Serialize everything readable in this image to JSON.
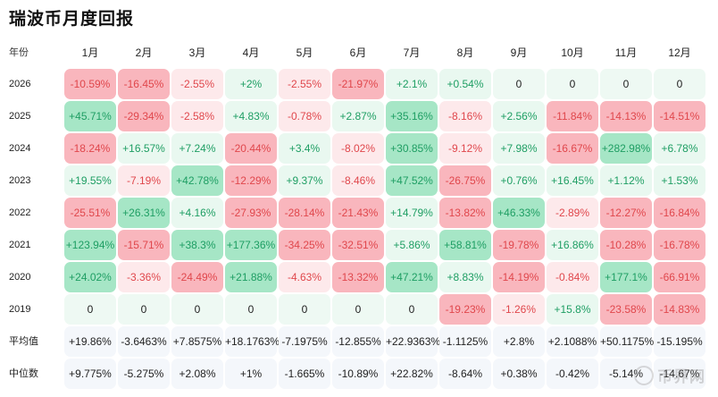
{
  "title": "瑞波币月度回报",
  "chart_data": {
    "type": "heatmap",
    "title": "瑞波币月度回报",
    "row_header": "年份",
    "months": [
      "1月",
      "2月",
      "3月",
      "4月",
      "5月",
      "6月",
      "7月",
      "8月",
      "9月",
      "10月",
      "11月",
      "12月"
    ],
    "rows": [
      {
        "label": "2026",
        "cells": [
          "-10.59%",
          "-16.45%",
          "-2.55%",
          "+2%",
          "-2.55%",
          "-21.97%",
          "+2.1%",
          "+0.54%",
          "0",
          "0",
          "0",
          "0"
        ],
        "values": [
          -10.59,
          -16.45,
          -2.55,
          2,
          -2.55,
          -21.97,
          2.1,
          0.54,
          0,
          0,
          0,
          0
        ]
      },
      {
        "label": "2025",
        "cells": [
          "+45.71%",
          "-29.34%",
          "-2.58%",
          "+4.83%",
          "-0.78%",
          "+2.87%",
          "+35.16%",
          "-8.16%",
          "+2.56%",
          "-11.84%",
          "-14.13%",
          "-14.51%"
        ],
        "values": [
          45.71,
          -29.34,
          -2.58,
          4.83,
          -0.78,
          2.87,
          35.16,
          -8.16,
          2.56,
          -11.84,
          -14.13,
          -14.51
        ]
      },
      {
        "label": "2024",
        "cells": [
          "-18.24%",
          "+16.57%",
          "+7.24%",
          "-20.44%",
          "+3.4%",
          "-8.02%",
          "+30.85%",
          "-9.12%",
          "+7.98%",
          "-16.67%",
          "+282.98%",
          "+6.78%"
        ],
        "values": [
          -18.24,
          16.57,
          7.24,
          -20.44,
          3.4,
          -8.02,
          30.85,
          -9.12,
          7.98,
          -16.67,
          282.98,
          6.78
        ]
      },
      {
        "label": "2023",
        "cells": [
          "+19.55%",
          "-7.19%",
          "+42.78%",
          "-12.29%",
          "+9.37%",
          "-8.46%",
          "+47.52%",
          "-26.75%",
          "+0.76%",
          "+16.45%",
          "+1.12%",
          "+1.53%"
        ],
        "values": [
          19.55,
          -7.19,
          42.78,
          -12.29,
          9.37,
          -8.46,
          47.52,
          -26.75,
          0.76,
          16.45,
          1.12,
          1.53
        ]
      },
      {
        "label": "2022",
        "cells": [
          "-25.51%",
          "+26.31%",
          "+4.16%",
          "-27.93%",
          "-28.14%",
          "-21.43%",
          "+14.79%",
          "-13.82%",
          "+46.33%",
          "-2.89%",
          "-12.27%",
          "-16.84%"
        ],
        "values": [
          -25.51,
          26.31,
          4.16,
          -27.93,
          -28.14,
          -21.43,
          14.79,
          -13.82,
          46.33,
          -2.89,
          -12.27,
          -16.84
        ]
      },
      {
        "label": "2021",
        "cells": [
          "+123.94%",
          "-15.71%",
          "+38.3%",
          "+177.36%",
          "-34.25%",
          "-32.51%",
          "+5.86%",
          "+58.81%",
          "-19.78%",
          "+16.86%",
          "-10.28%",
          "-16.78%"
        ],
        "values": [
          123.94,
          -15.71,
          38.3,
          177.36,
          -34.25,
          -32.51,
          5.86,
          58.81,
          -19.78,
          16.86,
          -10.28,
          -16.78
        ]
      },
      {
        "label": "2020",
        "cells": [
          "+24.02%",
          "-3.36%",
          "-24.49%",
          "+21.88%",
          "-4.63%",
          "-13.32%",
          "+47.21%",
          "+8.83%",
          "-14.19%",
          "-0.84%",
          "+177.1%",
          "-66.91%"
        ],
        "values": [
          24.02,
          -3.36,
          -24.49,
          21.88,
          -4.63,
          -13.32,
          47.21,
          8.83,
          -14.19,
          -0.84,
          177.1,
          -66.91
        ]
      },
      {
        "label": "2019",
        "cells": [
          "0",
          "0",
          "0",
          "0",
          "0",
          "0",
          "0",
          "-19.23%",
          "-1.26%",
          "+15.8%",
          "-23.58%",
          "-14.83%"
        ],
        "values": [
          0,
          0,
          0,
          0,
          0,
          0,
          0,
          -19.23,
          -1.26,
          15.8,
          -23.58,
          -14.83
        ]
      }
    ],
    "stats": [
      {
        "label": "平均值",
        "cells": [
          "+19.86%",
          "-3.6463%",
          "+7.8575%",
          "+18.1763%",
          "-7.1975%",
          "-12.855%",
          "+22.9363%",
          "-1.1125%",
          "+2.8%",
          "+2.1088%",
          "+50.1175%",
          "-15.195%"
        ]
      },
      {
        "label": "中位数",
        "cells": [
          "+9.775%",
          "-5.275%",
          "+2.08%",
          "+1%",
          "-1.665%",
          "-10.89%",
          "+22.82%",
          "-8.64%",
          "+0.38%",
          "-0.42%",
          "-5.14%",
          "-14.67%"
        ]
      }
    ]
  },
  "colors": {
    "positive_text": "#1e9e63",
    "negative_text": "#e0474c",
    "positive_strong": "#a6e6c6",
    "positive_light": "#e9f8f0",
    "negative_strong": "#f9b6bd",
    "negative_light": "#fde9eb",
    "zero_bg": "#eef9f3",
    "stat_bg": "#f4f7fb"
  },
  "watermark": {
    "icon": "coin-logo-icon",
    "text": "币界网"
  }
}
